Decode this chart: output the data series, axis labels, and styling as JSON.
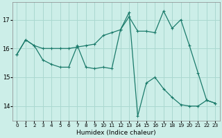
{
  "xlabel": "Humidex (Indice chaleur)",
  "bg_color": "#cceee8",
  "grid_color": "#aad8d0",
  "line_color": "#1a7a6a",
  "xlim": [
    -0.5,
    23.5
  ],
  "ylim": [
    13.5,
    17.6
  ],
  "yticks": [
    14,
    15,
    16,
    17
  ],
  "xticks": [
    0,
    1,
    2,
    3,
    4,
    5,
    6,
    7,
    8,
    9,
    10,
    11,
    12,
    13,
    14,
    15,
    16,
    17,
    18,
    19,
    20,
    21,
    22,
    23
  ],
  "series1_x": [
    0,
    1,
    2,
    3,
    4,
    5,
    6,
    7,
    8,
    9,
    10,
    11,
    12,
    13,
    14,
    15,
    16,
    17,
    18,
    19,
    20,
    21,
    22,
    23
  ],
  "series1_y": [
    15.8,
    16.3,
    16.1,
    16.0,
    16.0,
    16.0,
    16.0,
    16.05,
    16.1,
    16.15,
    16.45,
    16.55,
    16.65,
    17.1,
    16.6,
    16.6,
    16.55,
    17.3,
    16.7,
    17.0,
    16.1,
    15.15,
    14.2,
    14.1
  ],
  "series2_x": [
    0,
    1,
    2,
    3,
    4,
    5,
    6,
    7,
    8,
    9,
    10,
    11,
    12,
    13,
    14,
    15,
    16,
    17,
    18,
    19,
    20,
    21,
    22,
    23
  ],
  "series2_y": [
    15.8,
    16.3,
    16.1,
    15.6,
    15.45,
    15.35,
    15.35,
    16.1,
    15.35,
    15.3,
    15.35,
    15.3,
    16.65,
    17.25,
    13.65,
    14.8,
    15.0,
    14.6,
    14.3,
    14.05,
    14.0,
    14.0,
    14.2,
    14.1
  ]
}
